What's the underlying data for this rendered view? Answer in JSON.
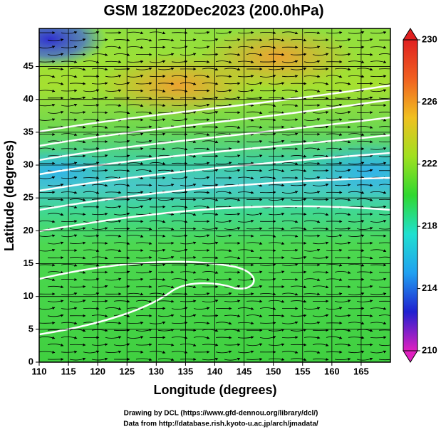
{
  "chart_data": {
    "type": "map",
    "title": "GSM 18Z20Dec2023 (200.0hPa)",
    "x_label": "Longitude (degrees)",
    "y_label": "Latitude  (degrees)",
    "xlim": [
      110,
      170
    ],
    "xticks": [
      110,
      115,
      120,
      125,
      130,
      135,
      140,
      145,
      150,
      155,
      160,
      165
    ],
    "ylim": [
      0,
      50.8
    ],
    "yticks": [
      0,
      5,
      10,
      15,
      20,
      25,
      30,
      35,
      40,
      45
    ],
    "grid": true,
    "colorbar": {
      "clim": [
        210,
        230
      ],
      "ticks": [
        210,
        214,
        218,
        222,
        226,
        230
      ],
      "colors": [
        "#e020c0",
        "#2020d0",
        "#20a0f0",
        "#20e0d0",
        "#30d830",
        "#a0e020",
        "#f0c020",
        "#f06020",
        "#e02020"
      ]
    },
    "footer": [
      "Drawing by DCL (https://www.gfd-dennou.org/library/dcl/)",
      "Data from http://database.rish.kyoto-u.ac.jp/arch/jmadata/"
    ]
  }
}
